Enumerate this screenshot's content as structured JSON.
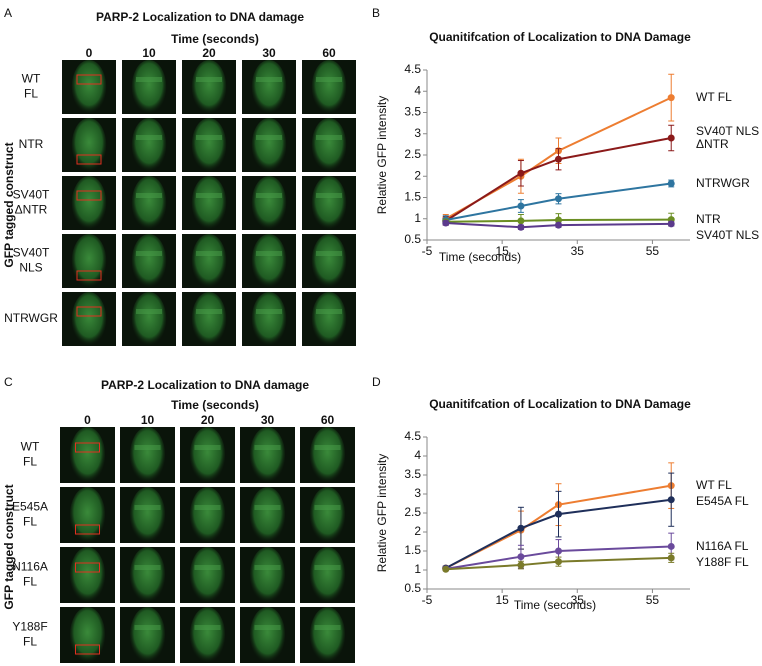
{
  "panels": [
    {
      "letter": "A",
      "title": "PARP-2 Localization to DNA damage",
      "x_label": "Time (seconds)",
      "columns": [
        "0",
        "10",
        "20",
        "30",
        "60"
      ],
      "y_label": "GFP tagged construct",
      "rows": [
        [
          "WT",
          "FL"
        ],
        [
          "NTR"
        ],
        [
          "SV40T",
          "ΔNTR"
        ],
        [
          "SV40T",
          "NLS"
        ],
        [
          "NTRWGR"
        ]
      ]
    },
    {
      "letter": "C",
      "title": "PARP-2 Localization to DNA damage",
      "x_label": "Time (seconds)",
      "columns": [
        "0",
        "10",
        "20",
        "30",
        "60"
      ],
      "y_label": "GFP tagged construct",
      "rows": [
        [
          "WT",
          "FL"
        ],
        [
          "E545A",
          "FL"
        ],
        [
          "N116A",
          "FL"
        ],
        [
          "Y188F",
          "FL"
        ]
      ]
    }
  ],
  "chart_data": [
    {
      "type": "line",
      "letter": "B",
      "title": "Quanitifcation of Localization to DNA Damage",
      "x_label": "Time (seconds)",
      "y_label": "Relative GFP intensity",
      "x": [
        0,
        20,
        30,
        60
      ],
      "xlim": [
        -5,
        65
      ],
      "xticks": [
        -5,
        15,
        35,
        55
      ],
      "ylim": [
        0.5,
        4.5
      ],
      "yticks": [
        0.5,
        1,
        1.5,
        2,
        2.5,
        3,
        3.5,
        4,
        4.5
      ],
      "series": [
        {
          "name": "WT FL",
          "color": "#ed7d31",
          "values": [
            1.0,
            2.0,
            2.6,
            3.85
          ],
          "errors": [
            0.1,
            0.4,
            0.3,
            0.55
          ]
        },
        {
          "name": "SV40T NLS ΔNTR",
          "color": "#8b1a1a",
          "values": [
            0.95,
            2.07,
            2.4,
            2.9
          ],
          "errors": [
            0.1,
            0.3,
            0.25,
            0.3
          ]
        },
        {
          "name": "NTRWGR",
          "color": "#2e75a0",
          "values": [
            0.97,
            1.3,
            1.47,
            1.83
          ],
          "errors": [
            0.1,
            0.15,
            0.12,
            0.08
          ]
        },
        {
          "name": "NTR",
          "color": "#6b8e23",
          "values": [
            0.93,
            0.95,
            0.97,
            0.98
          ],
          "errors": [
            0.05,
            0.15,
            0.15,
            0.15
          ]
        },
        {
          "name": "SV40T NLS",
          "color": "#5b3a8c",
          "values": [
            0.9,
            0.8,
            0.85,
            0.88
          ],
          "errors": [
            0.05,
            0.05,
            0.05,
            0.05
          ]
        }
      ]
    },
    {
      "type": "line",
      "letter": "D",
      "title": "Quanitifcation of Localization to DNA Damage",
      "x_label": "Time (seconds)",
      "y_label": "Relative GFP intensity",
      "x": [
        0,
        20,
        30,
        60
      ],
      "xlim": [
        -5,
        65
      ],
      "xticks": [
        -5,
        15,
        35,
        55
      ],
      "ylim": [
        0.5,
        4.5
      ],
      "yticks": [
        0.5,
        1,
        1.5,
        2,
        2.5,
        3,
        3.5,
        4,
        4.5
      ],
      "series": [
        {
          "name": "WT FL",
          "color": "#ed7d31",
          "values": [
            1.05,
            2.05,
            2.72,
            3.22
          ],
          "errors": [
            0.05,
            0.5,
            0.55,
            0.6
          ]
        },
        {
          "name": "E545A FL",
          "color": "#1f2f5a",
          "values": [
            1.05,
            2.1,
            2.47,
            2.85
          ],
          "errors": [
            0.05,
            0.55,
            0.6,
            0.7
          ]
        },
        {
          "name": "N116A FL",
          "color": "#6a4a9c",
          "values": [
            1.03,
            1.35,
            1.5,
            1.62
          ],
          "errors": [
            0.05,
            0.3,
            0.3,
            0.35
          ]
        },
        {
          "name": "Y188F FL",
          "color": "#7a7a2a",
          "values": [
            1.02,
            1.13,
            1.22,
            1.32
          ],
          "errors": [
            0.03,
            0.1,
            0.12,
            0.12
          ]
        }
      ]
    }
  ]
}
